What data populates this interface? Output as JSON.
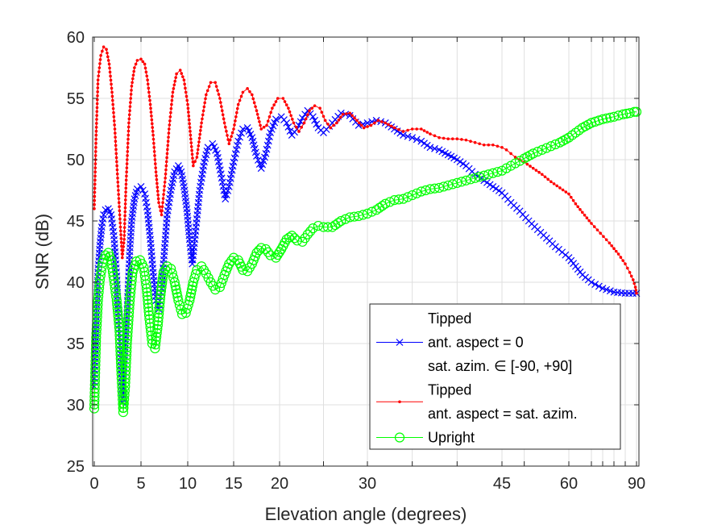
{
  "chart_data": {
    "type": "line",
    "xlabel": "Elevation angle (degrees)",
    "ylabel": "SNR (dB)",
    "ylim": [
      25,
      60
    ],
    "y_ticks": [
      "25",
      "30",
      "35",
      "40",
      "45",
      "50",
      "55",
      "60"
    ],
    "x_scale": "nonlinear (compressed toward 90)",
    "x_ticks": [
      {
        "value": 0,
        "label": "0"
      },
      {
        "value": 5,
        "label": "5"
      },
      {
        "value": 10,
        "label": "10"
      },
      {
        "value": 15,
        "label": "15"
      },
      {
        "value": 20,
        "label": "20"
      },
      {
        "value": 30,
        "label": "30"
      },
      {
        "value": 45,
        "label": "45"
      },
      {
        "value": 60,
        "label": "60"
      },
      {
        "value": 90,
        "label": "90"
      }
    ],
    "x_minor_ticks": [
      25,
      35,
      40,
      50,
      70,
      75,
      80,
      85
    ],
    "grid": true,
    "legend_position": "bottom-right",
    "legend": [
      {
        "text": [
          "Tipped",
          "ant. aspect = 0",
          "sat. azim. ∈ [-90, +90]"
        ],
        "color": "#0000ff",
        "marker": "x"
      },
      {
        "text": [
          "Tipped",
          "ant. aspect = sat. azim."
        ],
        "color": "#ff0000",
        "marker": "."
      },
      {
        "text": [
          "Upright"
        ],
        "color": "#00ff00",
        "marker": "o"
      }
    ],
    "series": [
      {
        "color": "#0000ff",
        "marker": "x",
        "x": [
          0,
          0.2,
          0.4,
          0.6,
          0.8,
          1.0,
          1.2,
          1.5,
          1.8,
          2.1,
          2.4,
          2.7,
          3.0,
          3.2,
          3.5,
          3.8,
          4.0,
          4.3,
          4.6,
          5.0,
          5.4,
          5.7,
          6.0,
          6.3,
          6.6,
          6.9,
          7.2,
          7.5,
          7.8,
          8.2,
          8.6,
          9.0,
          9.3,
          9.6,
          9.9,
          10.2,
          10.5,
          10.9,
          11.3,
          11.8,
          12.2,
          12.7,
          13.2,
          13.7,
          14.1,
          14.5,
          15.0,
          15.5,
          16.0,
          16.5,
          17.0,
          17.5,
          18.0,
          18.5,
          19.0,
          19.6,
          20.2,
          20.8,
          21.4,
          22.0,
          22.6,
          23.2,
          23.8,
          24.4,
          25.0,
          26.0,
          27.0,
          28.0,
          29.0,
          30.0,
          31.0,
          32.0,
          33.0,
          34.0,
          35.0,
          36.0,
          37.0,
          38.0,
          39.0,
          40.0,
          41.0,
          42.0,
          43.0,
          44.0,
          45.0,
          47.0,
          49.0,
          51.0,
          53.0,
          55.0,
          57.0,
          60.0,
          63.0,
          66.0,
          70.0,
          75.0,
          80.0,
          85.0,
          90.0
        ],
        "y": [
          31.5,
          37.5,
          40.8,
          43.0,
          44.5,
          45.5,
          45.9,
          46.0,
          45.5,
          43.8,
          40.5,
          35.5,
          30.2,
          33.0,
          37.5,
          42.5,
          45.0,
          46.8,
          47.6,
          47.8,
          47.2,
          45.8,
          43.5,
          40.8,
          38.5,
          37.8,
          39.5,
          42.5,
          45.5,
          47.5,
          49.0,
          49.5,
          49.0,
          47.8,
          46.0,
          43.5,
          41.5,
          44.5,
          47.5,
          49.8,
          51.0,
          51.3,
          50.5,
          48.5,
          46.8,
          47.8,
          49.8,
          51.5,
          52.5,
          52.6,
          51.8,
          50.3,
          49.3,
          50.5,
          52.2,
          53.3,
          53.5,
          53.0,
          52.0,
          52.5,
          53.4,
          54.0,
          53.5,
          52.6,
          52.2,
          53.0,
          53.8,
          53.6,
          52.8,
          53.0,
          53.2,
          53.0,
          52.5,
          52.0,
          51.8,
          51.5,
          51.0,
          50.8,
          50.4,
          50.0,
          49.5,
          48.8,
          48.3,
          47.8,
          47.3,
          46.5,
          45.8,
          45.0,
          44.3,
          43.6,
          42.9,
          42.0,
          41.3,
          40.6,
          40.0,
          39.5,
          39.2,
          39.1,
          39.1
        ]
      },
      {
        "color": "#ff0000",
        "marker": ".",
        "x": [
          0,
          0.2,
          0.4,
          0.7,
          1.0,
          1.3,
          1.6,
          1.9,
          2.2,
          2.5,
          2.8,
          3.0,
          3.2,
          3.4,
          3.7,
          4.0,
          4.3,
          4.6,
          5.0,
          5.4,
          5.7,
          6.0,
          6.3,
          6.6,
          6.9,
          7.2,
          7.6,
          8.0,
          8.4,
          8.8,
          9.2,
          9.6,
          10.0,
          10.3,
          10.6,
          11.0,
          11.5,
          12.0,
          12.5,
          13.0,
          13.5,
          14.0,
          14.5,
          15.0,
          15.5,
          16.0,
          16.5,
          17.0,
          17.5,
          18.0,
          18.6,
          19.2,
          19.8,
          20.4,
          21.0,
          21.6,
          22.2,
          22.8,
          23.4,
          24.0,
          24.6,
          25.2,
          25.8,
          26.5,
          27.2,
          28.0,
          28.8,
          29.6,
          30.4,
          31.2,
          32.0,
          33.0,
          34.0,
          35.0,
          36.0,
          37.0,
          38.0,
          39.0,
          40.0,
          41.0,
          42.0,
          43.0,
          44.0,
          45.0,
          46.0,
          47.0,
          48.0,
          49.0,
          50.0,
          52.0,
          54.0,
          56.0,
          58.0,
          60.0,
          63.0,
          66.0,
          70.0,
          74.0,
          78.0,
          82.0,
          85.0,
          87.0,
          88.5,
          89.5,
          90.0
        ],
        "y": [
          46.0,
          52.0,
          56.5,
          58.5,
          59.2,
          59.0,
          57.8,
          55.5,
          52.5,
          48.5,
          44.5,
          42.0,
          43.5,
          48.0,
          53.0,
          56.0,
          57.5,
          58.1,
          58.2,
          57.8,
          56.5,
          54.5,
          52.0,
          49.0,
          46.5,
          45.5,
          48.5,
          52.5,
          55.5,
          57.0,
          57.3,
          56.5,
          54.5,
          52.0,
          49.5,
          50.2,
          53.0,
          55.3,
          56.3,
          56.3,
          55.0,
          53.0,
          51.3,
          52.5,
          54.5,
          55.5,
          55.8,
          55.3,
          54.0,
          52.5,
          52.8,
          54.2,
          55.0,
          55.0,
          54.2,
          53.0,
          52.3,
          53.0,
          54.0,
          54.4,
          54.2,
          53.2,
          52.6,
          53.0,
          53.7,
          53.8,
          53.2,
          52.6,
          52.8,
          53.2,
          53.0,
          52.6,
          52.3,
          52.5,
          52.5,
          52.1,
          51.8,
          51.7,
          51.7,
          51.6,
          51.4,
          51.2,
          51.2,
          51.0,
          50.8,
          50.5,
          50.2,
          50.0,
          49.8,
          49.3,
          48.8,
          48.2,
          47.7,
          47.2,
          46.4,
          45.7,
          44.8,
          44.0,
          43.2,
          42.3,
          41.5,
          40.8,
          40.2,
          39.6,
          39.1
        ]
      },
      {
        "color": "#00ff00",
        "marker": "o",
        "x": [
          0,
          0.2,
          0.4,
          0.6,
          0.9,
          1.2,
          1.5,
          1.8,
          2.1,
          2.4,
          2.7,
          2.9,
          3.1,
          3.3,
          3.5,
          3.8,
          4.1,
          4.5,
          4.9,
          5.3,
          5.6,
          5.9,
          6.2,
          6.5,
          6.8,
          7.1,
          7.4,
          7.8,
          8.2,
          8.6,
          9.0,
          9.4,
          9.8,
          10.2,
          10.6,
          11.0,
          11.5,
          12.0,
          12.5,
          13.0,
          13.5,
          14.0,
          14.5,
          15.0,
          15.5,
          16.0,
          16.5,
          17.0,
          17.5,
          18.0,
          18.5,
          19.0,
          19.6,
          20.2,
          20.8,
          21.4,
          22.0,
          22.6,
          23.2,
          23.8,
          24.4,
          25.0,
          26.0,
          27.0,
          28.0,
          29.0,
          30.0,
          31.0,
          32.0,
          33.0,
          34.0,
          35.0,
          36.0,
          37.0,
          38.0,
          39.0,
          40.0,
          41.0,
          42.0,
          43.0,
          44.0,
          45.0,
          46.0,
          47.0,
          48.0,
          49.0,
          50.0,
          52.0,
          54.0,
          56.0,
          58.0,
          60.0,
          63.0,
          66.0,
          70.0,
          75.0,
          80.0,
          84.0,
          87.0,
          89.0,
          90.0
        ],
        "y": [
          29.7,
          35.5,
          38.5,
          40.2,
          41.6,
          42.2,
          42.4,
          41.8,
          40.2,
          38.5,
          36.0,
          32.5,
          29.4,
          31.5,
          35.0,
          38.5,
          40.8,
          41.7,
          41.8,
          41.2,
          39.5,
          37.0,
          35.0,
          34.6,
          36.5,
          39.0,
          40.8,
          41.3,
          41.1,
          40.0,
          38.5,
          37.4,
          37.5,
          38.5,
          40.0,
          41.0,
          41.3,
          40.7,
          40.0,
          39.4,
          39.6,
          40.6,
          41.5,
          42.0,
          41.8,
          41.0,
          40.9,
          41.5,
          42.4,
          42.8,
          42.7,
          42.2,
          42.0,
          42.7,
          43.5,
          43.8,
          43.4,
          43.3,
          43.9,
          44.4,
          44.6,
          44.5,
          44.5,
          45.0,
          45.3,
          45.4,
          45.6,
          45.9,
          46.4,
          46.7,
          46.8,
          47.1,
          47.4,
          47.6,
          47.7,
          47.9,
          48.1,
          48.3,
          48.5,
          48.7,
          48.9,
          49.1,
          49.3,
          49.5,
          49.7,
          49.9,
          50.1,
          50.5,
          50.8,
          51.1,
          51.4,
          51.8,
          52.2,
          52.6,
          53.0,
          53.3,
          53.5,
          53.7,
          53.8,
          53.9,
          53.9
        ]
      }
    ]
  }
}
